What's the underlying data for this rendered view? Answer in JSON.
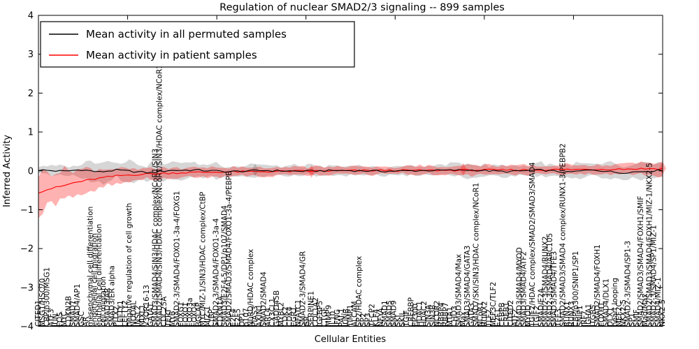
{
  "title": "Regulation of nuclear SMAD2/3 signaling -- 899 samples",
  "legend": {
    "items": [
      {
        "label": "Mean activity in all permuted samples",
        "color": "#000000"
      },
      {
        "label": "Mean activity in patient samples",
        "color": "#ff0000"
      }
    ]
  },
  "axes": {
    "y_label": "Inferred Activity",
    "x_label": "Cellular Entities",
    "y_ticks": [
      "4",
      "3",
      "2",
      "1",
      "0",
      "−1",
      "−2",
      "−3",
      "−4"
    ],
    "y_tick_values": [
      4,
      3,
      2,
      1,
      0,
      -1,
      -2,
      -3,
      -4
    ]
  },
  "chart_data": {
    "type": "line",
    "title": "Regulation of nuclear SMAD2/3 signaling -- 899 samples",
    "xlabel": "Cellular Entities",
    "ylabel": "Inferred Activity",
    "ylim": [
      -4,
      4
    ],
    "n_entities": 145,
    "legend_position": "upper left",
    "grid": false,
    "categories": [
      "CITED1",
      "MSG1/HSC70",
      "CBP/p300/MSG1",
      "ATF3",
      "JUN",
      "FOS",
      "MYC",
      "CDKN2B",
      "SMAD7",
      "SMAD4/AP1",
      "GSC",
      "AR",
      "mesenchymal cell differentiation",
      "endothelial cell migration",
      "epithelial cell differentiation",
      "cell migration",
      "SMAD3/AR",
      "SMAD3/ER alpha",
      "PITX2",
      "LEFTY1",
      "LEFTY2",
      "negative regulation of cell growth",
      "NODAL",
      "INSL2",
      "MIXL1",
      "V3OR16-13",
      "GATA1",
      "SMAD3/SMAD4/SIN3/HDAC complex/NCoR1/SIN3",
      "SMAD2/SMAD4/SIN3/HDAC complex/NCoR1/SIN3/HDAC complex/NCoR1",
      "CDC25A",
      "TERT",
      "MYB",
      "SMAD2-3/SMAD4/FOXO1-3a-4/FOXG1",
      "FOXG1",
      "FOXO1",
      "FOXO3a",
      "FOXO4",
      "BGLAP",
      "MYC/MIZ-1/SIN3/HDAC complex/CtBP",
      "MIZ-1",
      "CtBP",
      "SMAD2-3/SMAD4/FOXO1-3a-4",
      "CDKN1A",
      "SMAD3/E2F4-5/DP1/p107/SMAD4",
      "SMAD2/SMAD3/SMAD4/FOXO1-3a-4/PEBPB",
      "E2F4",
      "E2F5",
      "DP1",
      "p107",
      "NuRD/HDAC complex",
      "PIAS3",
      "AXIN1",
      "SMAD2/SMAD4",
      "ARL4",
      "CX3CL1",
      "GADD45B",
      "MYBL2",
      "CDK2",
      "CDK4",
      "EGR1",
      "NFATC1",
      "SMAD2-3/SMAD4/GR",
      "GR",
      "SERPINE1",
      "COL1A2",
      "IGFBP5",
      "CTGF",
      "MMP9",
      "IL10",
      "IFNG",
      "PAI-1",
      "JUNB",
      "TIMP1",
      "ALCAM",
      "SP2/HDAC complex",
      "SP2",
      "SP3",
      "TFCP2",
      "KLF4",
      "NFYA",
      "SMAD1",
      "SMAD5",
      "SMAD9",
      "SKI",
      "SKIL",
      "TGIF",
      "CREBBP",
      "EP300",
      "HDAC1",
      "HDAC2",
      "SIN3A",
      "SIN3B",
      "NCOR2",
      "RBBP4",
      "RBBP7",
      "MTA1",
      "CHD3",
      "SMAD3/SMAD4/Max",
      "Max",
      "SMAD3/SMAD4/GATA3",
      "GATA3",
      "SMAD7/SKI/SIN3/HDAC complex/NCoR1",
      "NCoR1",
      "RUNX2",
      "TLF2",
      "MEF3C/TLF2",
      "E2F1",
      "CEBPB",
      "CREB1",
      "CITED2",
      "ATF2",
      "SMAD3/SMAD4/MYOD",
      "SMAD3/SMAD4/ATF2",
      "MYOD",
      "TGIF2/HDAC complex/SMAD2/SMAD3/SMAD4",
      "TGIF2",
      "SMAD/E2A",
      "SMAD2-3/SMAD4/RUNX2",
      "SMAD2-3/SMAD4/ARC105",
      "SMAD3/SMAD4/TFE3",
      "TFE3",
      "SMAD2/SMAD3/SMAD4 complex/RUNX1-3/PEBPB2",
      "RUNX1",
      "RUNX3",
      "CBP/p300/SNIP1/SP1",
      "SNIP1",
      "IRF7",
      "IGHA1",
      "ITGB5",
      "SMAD2/SMAD4/FOXH1",
      "FOXH1",
      "SMAD4/DLX1",
      "DLX1",
      "heart looping",
      "MEF2C",
      "NKX2-5",
      "SMAD2-3/SMAD4/SP1-3",
      "SP1",
      "SMIF",
      "SMAD2/SMAD3/SMAD4/FOXH1/SMIF",
      "Mad/Max",
      "SMAD2/SMAD3/SMAD4/FOXH1/MIZ-1/NKX2-5",
      "SMAD2-3/SMAD4/SP1/MIZ-1",
      "SMAD4/MIZ-1",
      "NKX2-5"
    ],
    "series": [
      {
        "name": "Mean activity in all permuted samples",
        "line_color": "#000000",
        "band_color": "rgba(0,0,0,0.16)",
        "mean_cp": [
          [
            0,
            0.02
          ],
          [
            6,
            -0.01
          ],
          [
            10,
            0.03
          ],
          [
            14,
            -0.03
          ],
          [
            18,
            0.02
          ],
          [
            22,
            -0.02
          ],
          [
            26,
            -0.05
          ],
          [
            30,
            0.01
          ],
          [
            36,
            0.02
          ],
          [
            44,
            -0.02
          ],
          [
            52,
            0.01
          ],
          [
            60,
            -0.01
          ],
          [
            70,
            0.01
          ],
          [
            80,
            -0.01
          ],
          [
            90,
            0.01
          ],
          [
            100,
            0.02
          ],
          [
            108,
            -0.02
          ],
          [
            116,
            0.02
          ],
          [
            122,
            -0.04
          ],
          [
            128,
            0.03
          ],
          [
            134,
            -0.05
          ],
          [
            140,
            -0.01
          ],
          [
            144,
            0.02
          ]
        ],
        "band_halfwidth_cp": [
          [
            0,
            0.1
          ],
          [
            4,
            0.13
          ],
          [
            8,
            0.1
          ],
          [
            12,
            0.24
          ],
          [
            15,
            0.3
          ],
          [
            18,
            0.2
          ],
          [
            21,
            0.27
          ],
          [
            24,
            0.17
          ],
          [
            27,
            0.24
          ],
          [
            30,
            0.17
          ],
          [
            33,
            0.24
          ],
          [
            37,
            0.14
          ],
          [
            41,
            0.2
          ],
          [
            45,
            0.12
          ],
          [
            50,
            0.17
          ],
          [
            55,
            0.11
          ],
          [
            60,
            0.15
          ],
          [
            66,
            0.1
          ],
          [
            72,
            0.13
          ],
          [
            78,
            0.09
          ],
          [
            84,
            0.12
          ],
          [
            90,
            0.11
          ],
          [
            95,
            0.15
          ],
          [
            100,
            0.19
          ],
          [
            104,
            0.12
          ],
          [
            108,
            0.17
          ],
          [
            112,
            0.11
          ],
          [
            116,
            0.19
          ],
          [
            120,
            0.14
          ],
          [
            124,
            0.19
          ],
          [
            128,
            0.14
          ],
          [
            132,
            0.21
          ],
          [
            136,
            0.15
          ],
          [
            140,
            0.21
          ],
          [
            144,
            0.17
          ]
        ]
      },
      {
        "name": "Mean activity in patient samples",
        "line_color": "#ff0000",
        "band_color": "rgba(255,0,0,0.30)",
        "mean_cp": [
          [
            0,
            -0.55
          ],
          [
            2,
            -0.48
          ],
          [
            4,
            -0.43
          ],
          [
            6,
            -0.38
          ],
          [
            8,
            -0.31
          ],
          [
            10,
            -0.27
          ],
          [
            13,
            -0.21
          ],
          [
            16,
            -0.16
          ],
          [
            19,
            -0.12
          ],
          [
            22,
            -0.1
          ],
          [
            25,
            -0.08
          ],
          [
            28,
            -0.07
          ],
          [
            32,
            -0.05
          ],
          [
            36,
            -0.04
          ],
          [
            42,
            -0.03
          ],
          [
            50,
            -0.02
          ],
          [
            60,
            -0.01
          ],
          [
            70,
            0.0
          ],
          [
            80,
            0.01
          ],
          [
            90,
            0.01
          ],
          [
            100,
            0.02
          ],
          [
            110,
            0.02
          ],
          [
            120,
            0.03
          ],
          [
            128,
            0.04
          ],
          [
            136,
            0.05
          ],
          [
            144,
            0.06
          ]
        ],
        "band_halfwidth_cp": [
          [
            0,
            0.5
          ],
          [
            3,
            0.44
          ],
          [
            6,
            0.39
          ],
          [
            9,
            0.33
          ],
          [
            12,
            0.27
          ],
          [
            15,
            0.22
          ],
          [
            18,
            0.18
          ],
          [
            22,
            0.15
          ],
          [
            26,
            0.13
          ],
          [
            30,
            0.15
          ],
          [
            34,
            0.11
          ],
          [
            40,
            0.13
          ],
          [
            46,
            0.1
          ],
          [
            52,
            0.12
          ],
          [
            58,
            0.09
          ],
          [
            64,
            0.11
          ],
          [
            70,
            0.09
          ],
          [
            76,
            0.11
          ],
          [
            82,
            0.09
          ],
          [
            88,
            0.11
          ],
          [
            94,
            0.1
          ],
          [
            100,
            0.13
          ],
          [
            106,
            0.1
          ],
          [
            112,
            0.12
          ],
          [
            118,
            0.1
          ],
          [
            124,
            0.13
          ],
          [
            130,
            0.11
          ],
          [
            136,
            0.14
          ],
          [
            140,
            0.16
          ],
          [
            144,
            0.18
          ]
        ]
      }
    ],
    "markers": [
      {
        "index": 50,
        "series": 0,
        "shape": "diamond"
      },
      {
        "index": 63,
        "series": 1,
        "shape": "diamond"
      },
      {
        "index": 98,
        "series": 1,
        "shape": "diamond"
      },
      {
        "index": 144,
        "series": 1,
        "shape": "diamond"
      }
    ]
  }
}
